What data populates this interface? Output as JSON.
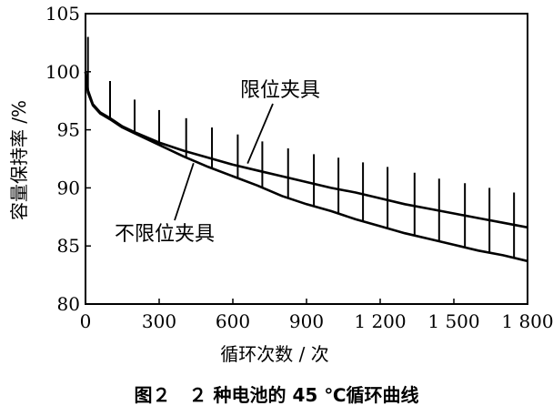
{
  "caption": "图２　２ 种电池的 45 ℃循环曲线",
  "chart_data": {
    "type": "line",
    "title": "",
    "xlabel": "循环次数 / 次",
    "ylabel": "容量保持率 /%",
    "xlim": [
      0,
      1800
    ],
    "ylim": [
      80,
      105
    ],
    "xticks": [
      0,
      300,
      600,
      900,
      1200,
      1500,
      1800
    ],
    "xtick_labels": [
      "0",
      "300",
      "600",
      "900",
      "1 200",
      "1 500",
      "1 800"
    ],
    "yticks": [
      80,
      85,
      90,
      95,
      100,
      105
    ],
    "ytick_labels": [
      "80",
      "85",
      "90",
      "95",
      "100",
      "105"
    ],
    "series": [
      {
        "name": "限位夹具",
        "x": [
          0,
          10,
          30,
          60,
          100,
          150,
          200,
          300,
          400,
          500,
          600,
          700,
          800,
          900,
          1000,
          1100,
          1200,
          1300,
          1400,
          1500,
          1600,
          1700,
          1800
        ],
        "values": [
          100,
          98.4,
          97.2,
          96.5,
          96.0,
          95.3,
          94.8,
          93.9,
          93.2,
          92.6,
          92.0,
          91.5,
          91.0,
          90.5,
          90.0,
          89.6,
          89.1,
          88.6,
          88.2,
          87.8,
          87.4,
          87.0,
          86.6
        ],
        "spike_x": [
          10,
          100,
          200,
          300,
          410,
          515,
          620,
          720,
          825,
          930,
          1030,
          1130,
          1230,
          1340,
          1440,
          1545,
          1645,
          1745
        ],
        "spike_top": [
          103.0,
          99.2,
          97.6,
          96.7,
          96.0,
          95.2,
          94.6,
          94.0,
          93.4,
          92.9,
          92.6,
          92.2,
          91.8,
          91.3,
          90.8,
          90.4,
          90.0,
          89.6
        ]
      },
      {
        "name": "不限位夹具",
        "x": [
          0,
          10,
          30,
          60,
          100,
          150,
          200,
          300,
          400,
          500,
          600,
          700,
          800,
          900,
          1000,
          1100,
          1200,
          1300,
          1400,
          1500,
          1600,
          1700,
          1800
        ],
        "values": [
          100,
          98.2,
          97.1,
          96.4,
          95.9,
          95.2,
          94.7,
          93.7,
          92.7,
          91.8,
          91.0,
          90.2,
          89.3,
          88.6,
          88.0,
          87.3,
          86.7,
          86.1,
          85.6,
          85.1,
          84.6,
          84.2,
          83.7
        ]
      }
    ],
    "annotations": [
      {
        "text": "限位夹具",
        "target_series": "限位夹具",
        "at": [
          660,
          92.1
        ]
      },
      {
        "text": "不限位夹具",
        "target_series": "不限位夹具",
        "at": [
          440,
          92.6
        ]
      }
    ]
  }
}
